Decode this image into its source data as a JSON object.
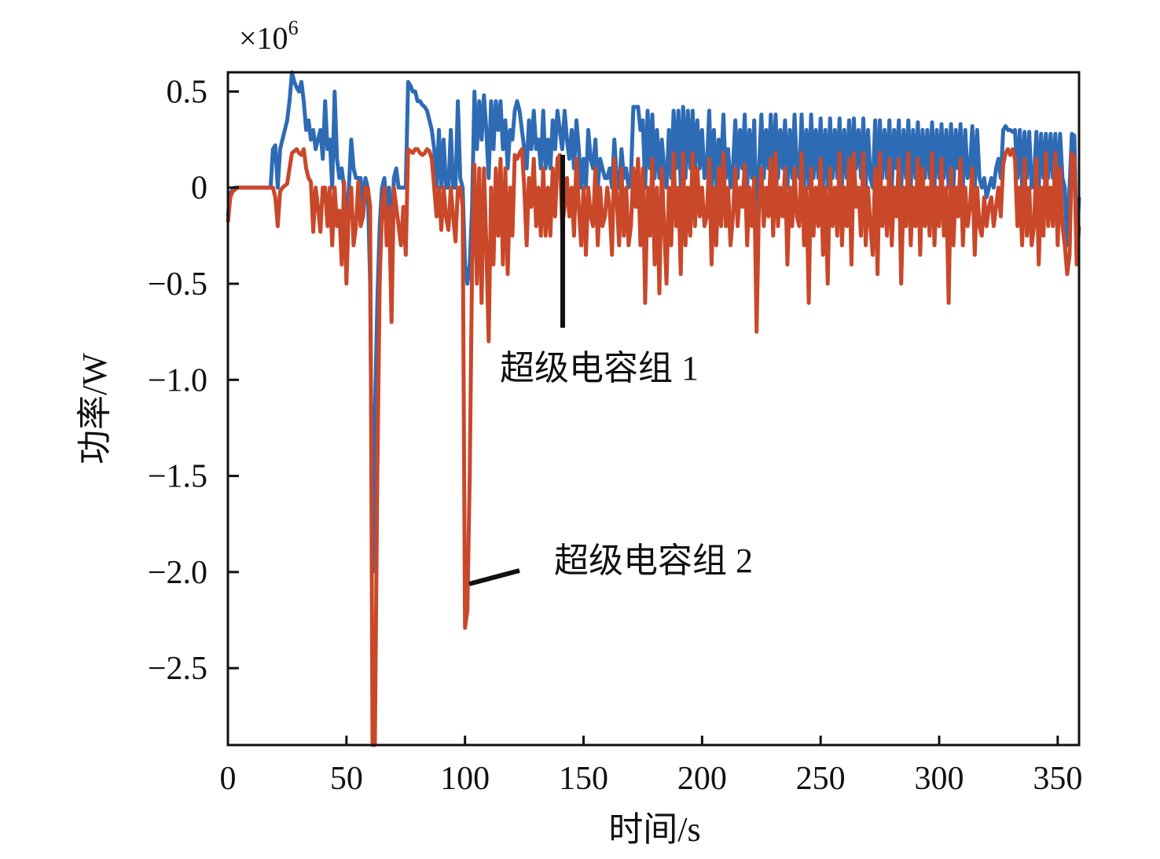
{
  "chart_data": {
    "type": "line",
    "xlabel": "时间/s",
    "ylabel": "功率/W",
    "y_multiplier": "×10",
    "y_multiplier_exp": "6",
    "xlim": [
      0,
      359
    ],
    "ylim": [
      -2.9,
      0.6
    ],
    "x_ticks": [
      0,
      50,
      100,
      150,
      200,
      250,
      300,
      350
    ],
    "x_tick_labels": [
      "0",
      "50",
      "100",
      "150",
      "200",
      "250",
      "300",
      "350"
    ],
    "y_ticks": [
      0.5,
      0,
      -0.5,
      -1.0,
      -1.5,
      -2.0,
      -2.5
    ],
    "y_tick_labels": [
      "0.5",
      "0",
      "−0.5",
      "−1.0",
      "−1.5",
      "−2.0",
      "−2.5"
    ],
    "grid": false,
    "legend": "none",
    "annotations": [
      {
        "text": "超级电容组 1",
        "series": 0
      },
      {
        "text": "超级电容组 2",
        "series": 1
      }
    ],
    "series": [
      {
        "name": "超级电容组 1",
        "color": "#2e6bb5",
        "values": [
          -0.15,
          -0.03,
          -0.01,
          0,
          0,
          0,
          0,
          0,
          0,
          0,
          0,
          0,
          0,
          0,
          0,
          0,
          0,
          0,
          0,
          0.2,
          0.22,
          0,
          0.2,
          0.25,
          0.3,
          0.35,
          0.45,
          0.6,
          0.55,
          0.52,
          0.5,
          0.55,
          0.45,
          0.3,
          0.35,
          0.25,
          0.3,
          0.2,
          0.25,
          0.3,
          0.15,
          0.45,
          0.2,
          0.25,
          0.0,
          0.5,
          0.15,
          0.05,
          0.1,
          0.0,
          -0.2,
          0.0,
          0.25,
          0.1,
          0.05,
          0.05,
          0.05,
          -0.1,
          0.05,
          0.0,
          -0.5,
          -2.0,
          -1.2,
          -0.6,
          -0.2,
          0.0,
          0.05,
          -0.1,
          0.0,
          -0.3,
          0.05,
          0.1,
          0.0,
          0.0,
          0.0,
          0.0,
          0.55,
          0.53,
          0.5,
          0.5,
          0.45,
          0.45,
          0.43,
          0.42,
          0.4,
          0.35,
          0.3,
          0.2,
          0.0,
          0.3,
          0.0,
          0.25,
          0.0,
          0.0,
          0.3,
          0.0,
          0.0,
          0.45,
          0.05,
          0.0,
          -0.4,
          -0.5,
          -0.4,
          -0.1,
          0.5,
          0.2,
          0.45,
          0.25,
          0.48,
          0.3,
          0.05,
          0.45,
          0.2,
          0.45,
          0.3,
          0.45,
          0.2,
          0.35,
          0.1,
          0.3,
          0.25,
          0.4,
          0.45,
          0.4,
          0.3,
          0.2,
          0.1,
          0.35,
          0.2,
          0.4,
          0.2,
          0.25,
          0.1,
          0.4,
          0.1,
          0.25,
          0.1,
          0.35,
          0.2,
          0.4,
          0.3,
          0.2,
          0.4,
          0.25,
          0.15,
          0.3,
          0.1,
          0.35,
          0.2,
          0.0,
          0.15,
          0.0,
          0.3,
          0.15,
          0.1,
          0.25,
          0.0,
          0.15,
          0.1,
          0.05,
          0.05,
          0.1,
          0.0,
          0.25,
          0.05,
          0.0,
          0.2,
          0.05,
          0.1,
          0.0,
          0.05,
          0.42,
          0.42,
          0.42,
          0.3,
          0.35,
          0.0,
          0.4,
          0.1,
          0.38,
          0.05,
          0.3,
          0.05,
          0.25,
          0.1,
          0.0,
          0.3,
          0.05,
          0.4,
          0.1,
          0.4,
          0.0,
          0.42,
          0.05,
          0.4,
          0.1,
          0.4,
          0.1,
          0.35,
          0.1,
          0.3,
          0.05,
          0.1,
          0.4,
          0.0,
          0.3,
          0.0,
          0.25,
          0.1,
          0.38,
          0.05,
          0.2,
          0.0,
          0.1,
          0.35,
          0.05,
          0.3,
          0.1,
          0.38,
          0.0,
          0.3,
          0.05,
          0.35,
          -0.3,
          0.1,
          0.38,
          0.05,
          0.3,
          0.1,
          0.38,
          0.05,
          0.38,
          0.05,
          0.3,
          0.1,
          0.35,
          0.0,
          0.3,
          0.05,
          0.38,
          0.1,
          0.05,
          0.38,
          0.0,
          0.3,
          0.0,
          0.38,
          0.05,
          0.3,
          0.05,
          0.36,
          0.0,
          0.3,
          0.0,
          0.36,
          0.05,
          0.3,
          0.05,
          0.36,
          0.0,
          0.3,
          0.05,
          0.35,
          0.0,
          0.36,
          0.1,
          0.3,
          0.05,
          0.36,
          0.0,
          0.3,
          0.05,
          0.0,
          0.35,
          0.0,
          0.35,
          0.05,
          0.3,
          0.05,
          0.35,
          0.0,
          0.3,
          0.1,
          0.35,
          0.0,
          0.3,
          0.05,
          0.35,
          0.0,
          0.3,
          0.05,
          0.34,
          0.0,
          0.3,
          0.05,
          0.3,
          0.05,
          0.34,
          0.0,
          0.3,
          0.05,
          0.33,
          0.05,
          0.3,
          0.0,
          0.33,
          0.0,
          0.3,
          0.1,
          0.33,
          0.0,
          0.3,
          0.05,
          0.1,
          0.32,
          0.0,
          0.3,
          0.05,
          0.0,
          0.05,
          -0.05,
          0.0,
          0.05,
          0.0,
          0.1,
          0.15,
          0.05,
          0.3,
          0.32,
          0.3,
          0.3,
          0.29,
          0.3,
          0.05,
          0.3,
          0.0,
          0.29,
          0.05,
          0.29,
          0.0,
          0.05,
          0.29,
          0.0,
          0.28,
          0.05,
          0.28,
          0.05,
          0.28,
          0.05,
          0.28,
          0.0,
          0.28,
          0.05,
          0.0,
          -0.3,
          0.0,
          0.28,
          0.27,
          -0.3,
          -0.05
        ]
      },
      {
        "name": "超级电容组 2",
        "color": "#c9482a",
        "values": [
          -0.18,
          -0.05,
          -0.02,
          -0.01,
          0,
          0,
          0,
          0,
          0,
          0,
          0,
          0,
          0,
          0,
          0,
          0,
          0,
          0,
          0,
          0,
          -0.05,
          -0.2,
          -0.02,
          0,
          0.01,
          0.02,
          0.1,
          0.18,
          0.19,
          0.2,
          0.18,
          0.17,
          0.2,
          0.1,
          0.05,
          0.03,
          -0.23,
          0,
          -0.1,
          -0.23,
          0,
          0,
          -0.2,
          0,
          -0.3,
          0,
          -0.2,
          -0.12,
          -0.4,
          0.03,
          -0.5,
          -0.1,
          0,
          -0.3,
          -0.2,
          0.03,
          -0.2,
          -0.15,
          0,
          0,
          -0.1,
          -2.9,
          -2.9,
          -1.5,
          -0.5,
          -0.1,
          0,
          -0.3,
          -0.1,
          -0.7,
          0,
          -0.1,
          -0.2,
          -0.3,
          -0.1,
          -0.35,
          0.2,
          0.19,
          0.18,
          0.2,
          0.2,
          0.18,
          0.17,
          0.18,
          0.2,
          0.19,
          0.15,
          0,
          -0.15,
          0,
          -0.22,
          0,
          -0.15,
          -0.22,
          0,
          -0.15,
          -0.28,
          0,
          0,
          -0.1,
          -2.29,
          -2.2,
          -1.5,
          -0.4,
          0.12,
          -0.5,
          0.1,
          -0.6,
          0.1,
          -0.3,
          -0.8,
          0,
          -0.4,
          0.1,
          -0.25,
          0.15,
          -0.4,
          0.1,
          -0.45,
          0,
          -0.25,
          0.17,
          0.15,
          0.18,
          0.2,
          0,
          -0.3,
          0.05,
          -0.1,
          0.15,
          -0.2,
          0,
          -0.25,
          0.1,
          -0.25,
          0,
          -0.25,
          0.1,
          -0.15,
          0.15,
          0.17,
          -0.2,
          -0.1,
          0.05,
          -0.15,
          0,
          -0.25,
          0.15,
          -0.1,
          -0.3,
          0,
          -0.35,
          0,
          -0.15,
          -0.2,
          0.1,
          -0.3,
          0,
          -0.2,
          -0.15,
          0,
          -0.1,
          -0.35,
          0.15,
          -0.05,
          -0.3,
          0.1,
          -0.25,
          0,
          -0.3,
          -0.2,
          0.1,
          -0.1,
          0.15,
          -0.3,
          0.1,
          -0.6,
          0,
          -0.25,
          0.15,
          -0.4,
          0,
          -0.55,
          0.1,
          -0.2,
          -0.5,
          0,
          -0.3,
          0.18,
          -0.2,
          0,
          -0.45,
          0.18,
          -0.3,
          0,
          -0.25,
          0.18,
          -0.2,
          0.1,
          -0.15,
          0,
          -0.2,
          -0.15,
          0.15,
          -0.4,
          0,
          -0.3,
          0.1,
          -0.2,
          0.18,
          -0.2,
          0,
          -0.3,
          -0.15,
          0.1,
          -0.2,
          0,
          -0.1,
          0.12,
          -0.3,
          0,
          -0.2,
          0.05,
          -0.75,
          -0.1,
          0.1,
          -0.2,
          0,
          -0.15,
          0.15,
          -0.25,
          0.18,
          -0.2,
          0,
          -0.15,
          0.1,
          -0.4,
          0,
          -0.2,
          0.1,
          -0.15,
          -0.2,
          0.18,
          -0.3,
          0,
          -0.6,
          0.1,
          -0.25,
          0,
          -0.2,
          0.15,
          -0.35,
          0,
          -0.5,
          0.1,
          -0.2,
          0,
          -0.25,
          0.18,
          -0.3,
          0,
          -0.2,
          0.15,
          -0.4,
          0.18,
          -0.1,
          0,
          -0.25,
          0.18,
          -0.3,
          0,
          -0.2,
          -0.35,
          0.1,
          -0.45,
          0.18,
          -0.2,
          0,
          -0.25,
          0.15,
          -0.3,
          0,
          -0.15,
          0.15,
          -0.5,
          0,
          -0.2,
          0.18,
          -0.3,
          0,
          -0.2,
          0.15,
          -0.35,
          0.1,
          -0.2,
          0,
          -0.25,
          0.18,
          -0.3,
          0,
          -0.2,
          0.15,
          -0.25,
          0,
          -0.6,
          0.1,
          -0.3,
          0,
          -0.15,
          0.15,
          -0.3,
          0,
          -0.2,
          -0.1,
          0.1,
          -0.35,
          0,
          -0.2,
          -0.25,
          -0.05,
          -0.2,
          -0.1,
          -0.05,
          -0.2,
          -0.1,
          0,
          -0.15,
          0.12,
          0.18,
          0.2,
          0.17,
          0.2,
          0.15,
          -0.2,
          0,
          -0.3,
          0.15,
          -0.25,
          0,
          -0.3,
          -0.2,
          0.15,
          -0.4,
          0,
          -0.25,
          0.18,
          -0.2,
          0,
          -0.2,
          0.18,
          -0.3,
          0.1,
          -0.2,
          -0.3,
          -0.45,
          -0.35,
          0.18,
          0.15,
          -0.4,
          -0.2
        ]
      }
    ]
  }
}
